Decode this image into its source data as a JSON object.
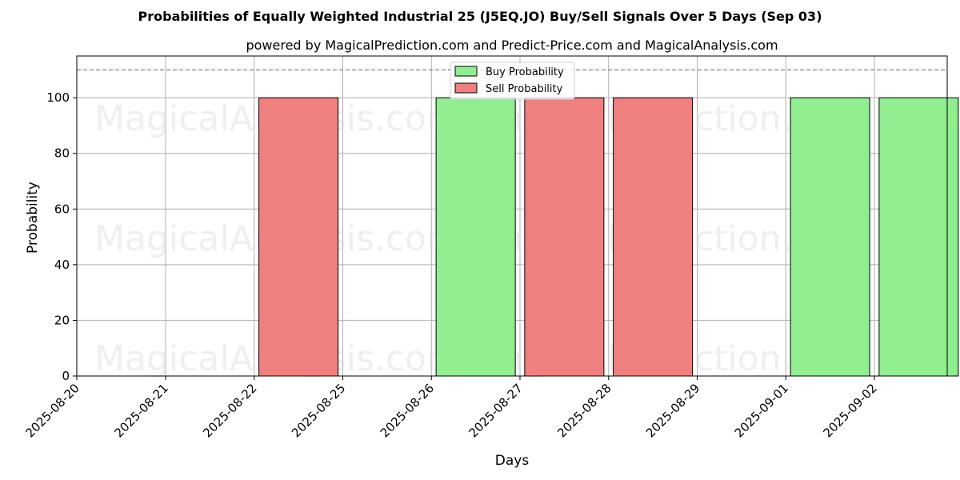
{
  "chart_data": {
    "type": "bar",
    "title": "Probabilities of Equally Weighted Industrial 25  (J5EQ.JO) Buy/Sell Signals Over 5 Days (Sep 03)",
    "subtitle": "powered by MagicalPrediction.com and Predict-Price.com and MagicalAnalysis.com",
    "xlabel": "Days",
    "ylabel": "Probability",
    "ylim": [
      0,
      115
    ],
    "yticks": [
      0,
      20,
      40,
      60,
      80,
      100
    ],
    "reference_line": 110,
    "grid": true,
    "legend_position": "top-center",
    "categories": [
      "2025-08-20",
      "2025-08-21",
      "2025-08-22",
      "2025-08-25",
      "2025-08-26",
      "2025-08-27",
      "2025-08-28",
      "2025-08-29",
      "2025-09-01",
      "2025-09-02"
    ],
    "series": [
      {
        "name": "Buy Probability",
        "color": "#90ee90",
        "values": [
          0,
          0,
          0,
          0,
          100,
          0,
          0,
          0,
          100,
          100
        ]
      },
      {
        "name": "Sell Probability",
        "color": "#f08080",
        "values": [
          0,
          0,
          100,
          0,
          0,
          100,
          100,
          0,
          0,
          0
        ]
      }
    ],
    "watermarks": [
      "MagicalAnalysis.com",
      "MagicalPrediction.com"
    ]
  }
}
